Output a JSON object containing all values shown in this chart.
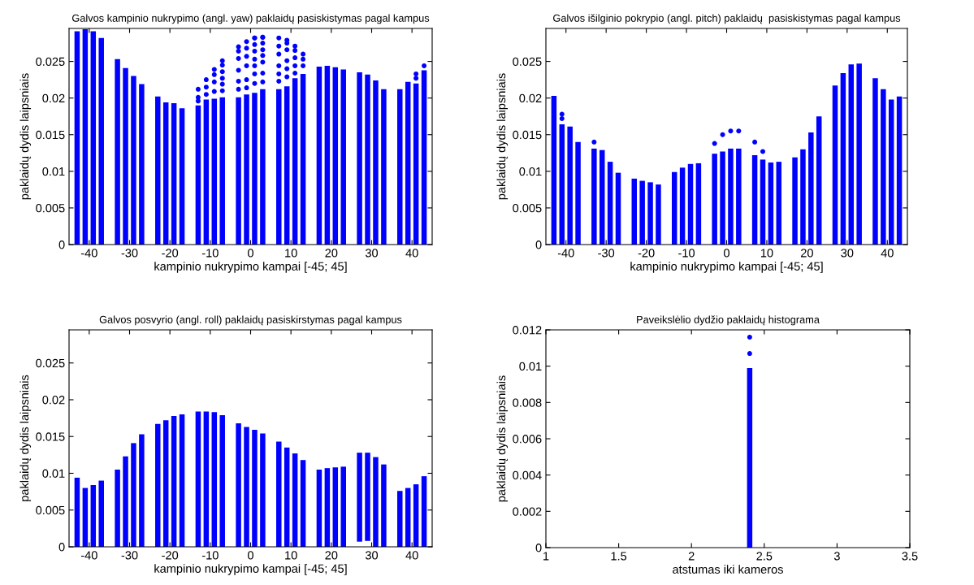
{
  "chart_data": [
    {
      "type": "bar",
      "title": "Galvos kampinio nukrypimo (angl. yaw) paklaidų pasiskistymas pagal kampus",
      "xlabel": "kampinio nukrypimo kampai [-45; 45]",
      "ylabel": "paklaidų dydis laipsniais",
      "xlim": [
        -45,
        45
      ],
      "ylim": [
        0,
        0.0295
      ],
      "xticks": [
        -40,
        -30,
        -20,
        -10,
        0,
        10,
        20,
        30,
        40
      ],
      "yticks": [
        0,
        0.005,
        0.01,
        0.015,
        0.02,
        0.025
      ],
      "grid": false,
      "legend": false,
      "series": [
        {
          "color": "#0000ff",
          "x": [
            -43,
            -41,
            -39,
            -37,
            -33,
            -31,
            -29,
            -27,
            -23,
            -21,
            -19,
            -17,
            -13,
            -11,
            -9,
            -7,
            -3,
            -1,
            1,
            3,
            7,
            9,
            11,
            13,
            17,
            19,
            21,
            23,
            27,
            29,
            31,
            33,
            37,
            39,
            41,
            43
          ],
          "values": [
            0.0291,
            0.0294,
            0.0291,
            0.0282,
            0.0253,
            0.0241,
            0.023,
            0.0219,
            0.0202,
            0.0194,
            0.0193,
            0.0186,
            0.019,
            0.0198,
            0.0199,
            0.0201,
            0.0201,
            0.0205,
            0.0207,
            0.0212,
            0.0212,
            0.0216,
            0.0227,
            0.0233,
            0.0243,
            0.0244,
            0.0242,
            0.0239,
            0.0235,
            0.0232,
            0.0224,
            0.0212,
            0.0212,
            0.0222,
            0.022,
            0.0238
          ]
        },
        {
          "type": "scatter",
          "color": "#0000ff",
          "marker": "circle",
          "x": [
            -13,
            -13,
            -13,
            -11,
            -11,
            -11,
            -9,
            -9,
            -9,
            -9,
            -7,
            -7,
            -7,
            -7,
            -7,
            -7,
            -3,
            -3,
            -3,
            -3,
            -3,
            -3,
            -1,
            -1,
            -1,
            -1,
            -1,
            -1,
            1,
            1,
            1,
            1,
            1,
            1,
            1,
            1,
            3,
            3,
            3,
            3,
            3,
            3,
            3,
            3,
            7,
            7,
            7,
            7,
            7,
            7,
            9,
            9,
            9,
            9,
            9,
            9,
            11,
            11,
            11,
            11,
            11,
            13,
            13,
            13,
            41,
            41,
            43
          ],
          "values": [
            0.0196,
            0.0201,
            0.0212,
            0.0205,
            0.0215,
            0.0225,
            0.0209,
            0.0222,
            0.0232,
            0.0239,
            0.021,
            0.0219,
            0.0227,
            0.0236,
            0.0245,
            0.0251,
            0.0212,
            0.0223,
            0.0238,
            0.0254,
            0.0264,
            0.027,
            0.0214,
            0.0225,
            0.0244,
            0.0257,
            0.0268,
            0.0277,
            0.022,
            0.0233,
            0.0244,
            0.0253,
            0.0264,
            0.0273,
            0.0282,
            0.0282,
            0.0222,
            0.0234,
            0.0249,
            0.0258,
            0.0266,
            0.0275,
            0.0283,
            0.0283,
            0.0223,
            0.0233,
            0.0244,
            0.026,
            0.0271,
            0.0282,
            0.0229,
            0.024,
            0.0251,
            0.0266,
            0.0275,
            0.0279,
            0.0234,
            0.0244,
            0.0255,
            0.0265,
            0.0271,
            0.0244,
            0.0253,
            0.026,
            0.0227,
            0.0233,
            0.0244
          ]
        }
      ]
    },
    {
      "type": "bar",
      "title": "Galvos išilginio pokrypio (angl. pitch) paklaidų  pasiskistymas pagal kampus",
      "xlabel": "kampinio nukrypimo kampai [-45; 45]",
      "ylabel": "paklaidų dydis laipsniais",
      "xlim": [
        -45,
        45
      ],
      "ylim": [
        0,
        0.0295
      ],
      "xticks": [
        -40,
        -30,
        -20,
        -10,
        0,
        10,
        20,
        30,
        40
      ],
      "yticks": [
        0,
        0.005,
        0.01,
        0.015,
        0.02,
        0.025
      ],
      "grid": false,
      "legend": false,
      "series": [
        {
          "color": "#0000ff",
          "x": [
            -43,
            -41,
            -39,
            -37,
            -33,
            -31,
            -29,
            -27,
            -23,
            -21,
            -19,
            -17,
            -13,
            -11,
            -9,
            -7,
            -3,
            -1,
            1,
            3,
            7,
            9,
            11,
            13,
            17,
            19,
            21,
            23,
            27,
            29,
            31,
            33,
            37,
            39,
            41,
            43
          ],
          "values": [
            0.0203,
            0.0164,
            0.0161,
            0.014,
            0.0131,
            0.0129,
            0.0113,
            0.0098,
            0.009,
            0.0087,
            0.0085,
            0.0082,
            0.0099,
            0.0105,
            0.011,
            0.0111,
            0.0124,
            0.0127,
            0.0131,
            0.0131,
            0.0122,
            0.0116,
            0.0112,
            0.0113,
            0.0119,
            0.013,
            0.0153,
            0.0175,
            0.0217,
            0.0234,
            0.0246,
            0.0247,
            0.0227,
            0.0212,
            0.0198,
            0.0202
          ]
        },
        {
          "type": "scatter",
          "color": "#0000ff",
          "marker": "circle",
          "x": [
            -41,
            -41,
            -33,
            -3,
            -1,
            1,
            3,
            7,
            9
          ],
          "values": [
            0.0172,
            0.0178,
            0.014,
            0.0138,
            0.015,
            0.0155,
            0.0155,
            0.014,
            0.0127
          ]
        }
      ]
    },
    {
      "type": "bar",
      "title": "Galvos posvyrio (angl. roll) paklaidų pasiskirstymas pagal kampus",
      "xlabel": "kampinio nukrypimo kampai [-45; 45]",
      "ylabel": "paklaidų dydis laipsniais",
      "xlim": [
        -45,
        45
      ],
      "ylim": [
        0,
        0.0295
      ],
      "xticks": [
        -40,
        -30,
        -20,
        -10,
        0,
        10,
        20,
        30,
        40
      ],
      "yticks": [
        0,
        0.005,
        0.01,
        0.015,
        0.02,
        0.025
      ],
      "grid": false,
      "legend": false,
      "series": [
        {
          "color": "#0000ff",
          "x": [
            -43,
            -41,
            -39,
            -37,
            -33,
            -31,
            -29,
            -27,
            -23,
            -21,
            -19,
            -17,
            -13,
            -11,
            -9,
            -7,
            -3,
            -1,
            1,
            3,
            7,
            9,
            11,
            13,
            17,
            19,
            21,
            23,
            27,
            29,
            31,
            33,
            37,
            39,
            41,
            43
          ],
          "base": [
            0,
            0,
            0,
            0,
            0,
            0,
            0,
            0,
            0,
            0,
            0,
            0,
            0,
            0,
            0,
            0,
            0,
            0,
            0,
            0,
            0,
            0,
            0,
            0,
            0,
            0,
            0,
            0,
            0.0007,
            0.0008,
            0,
            0,
            0,
            0,
            0,
            0
          ],
          "values": [
            0.0094,
            0.008,
            0.0084,
            0.009,
            0.0105,
            0.0123,
            0.0141,
            0.0153,
            0.0167,
            0.0172,
            0.0178,
            0.018,
            0.0184,
            0.0184,
            0.0183,
            0.0179,
            0.0168,
            0.0163,
            0.0159,
            0.0154,
            0.0143,
            0.0135,
            0.0127,
            0.0118,
            0.0105,
            0.0107,
            0.0108,
            0.0109,
            0.0121,
            0.012,
            0.0122,
            0.0112,
            0.0076,
            0.008,
            0.0085,
            0.0096
          ]
        }
      ]
    },
    {
      "type": "bar",
      "title": "Paveikslėlio dydžio paklaidų histograma",
      "xlabel": "atstumas iki kameros",
      "ylabel": "paklaidų dydis laipsniais",
      "xlim": [
        1,
        3.5
      ],
      "ylim": [
        0,
        0.012
      ],
      "xticks": [
        1,
        1.5,
        2,
        2.5,
        3,
        3.5
      ],
      "yticks": [
        0,
        0.002,
        0.004,
        0.006,
        0.008,
        0.01,
        0.012
      ],
      "grid": false,
      "legend": false,
      "series": [
        {
          "color": "#0000ff",
          "x": [
            2.4
          ],
          "values": [
            0.0099
          ]
        },
        {
          "type": "scatter",
          "color": "#0000ff",
          "marker": "circle",
          "x": [
            2.4,
            2.4
          ],
          "values": [
            0.0107,
            0.0116
          ]
        }
      ]
    }
  ]
}
